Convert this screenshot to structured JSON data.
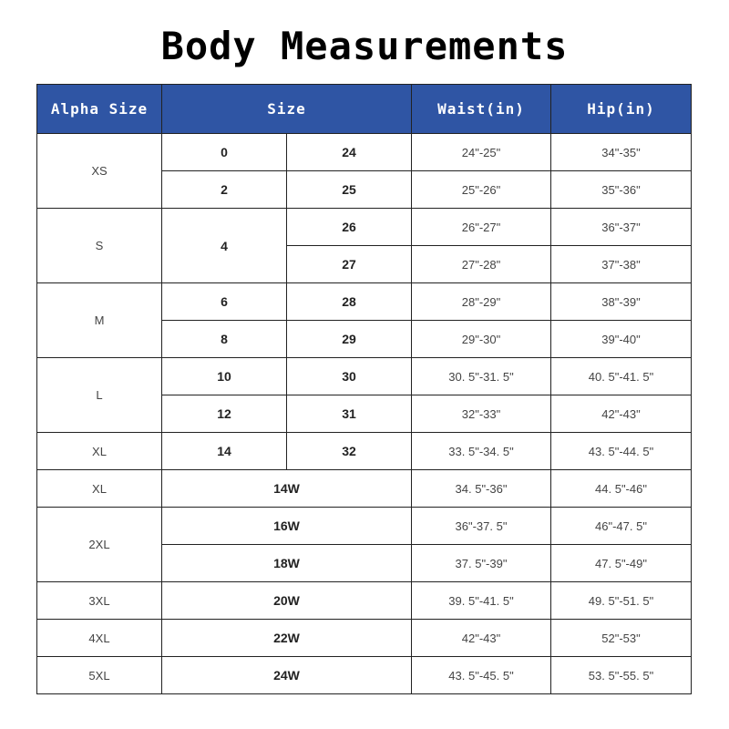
{
  "title": "Body Measurements",
  "headers": {
    "alpha": "Alpha Size",
    "size": "Size",
    "waist": "Waist(in)",
    "hip": "Hip(in)"
  },
  "colors": {
    "header_bg": "#2f55a4",
    "header_text": "#ffffff"
  },
  "groups": [
    {
      "alpha": "XS",
      "rows": [
        {
          "size": "0",
          "size2": "24",
          "waist": "24\"-25\"",
          "hip": "34\"-35\""
        },
        {
          "size": "2",
          "size2": "25",
          "waist": "25\"-26\"",
          "hip": "35\"-36\""
        }
      ]
    },
    {
      "alpha": "S",
      "size": "4",
      "rows": [
        {
          "size2": "26",
          "waist": "26\"-27\"",
          "hip": "36\"-37\""
        },
        {
          "size2": "27",
          "waist": "27\"-28\"",
          "hip": "37\"-38\""
        }
      ]
    },
    {
      "alpha": "M",
      "rows": [
        {
          "size": "6",
          "size2": "28",
          "waist": "28\"-29\"",
          "hip": "38\"-39\""
        },
        {
          "size": "8",
          "size2": "29",
          "waist": "29\"-30\"",
          "hip": "39\"-40\""
        }
      ]
    },
    {
      "alpha": "L",
      "rows": [
        {
          "size": "10",
          "size2": "30",
          "waist": "30. 5\"-31. 5\"",
          "hip": "40. 5\"-41. 5\""
        },
        {
          "size": "12",
          "size2": "31",
          "waist": "32\"-33\"",
          "hip": "42\"-43\""
        }
      ]
    },
    {
      "alpha": "XL",
      "rows": [
        {
          "size": "14",
          "size2": "32",
          "waist": "33. 5\"-34. 5\"",
          "hip": "43. 5\"-44. 5\""
        }
      ]
    },
    {
      "alpha": "XL",
      "rows": [
        {
          "wide": "14W",
          "waist": "34. 5\"-36\"",
          "hip": "44. 5\"-46\""
        }
      ]
    },
    {
      "alpha": "2XL",
      "rows": [
        {
          "wide": "16W",
          "waist": "36\"-37. 5\"",
          "hip": "46\"-47. 5\""
        },
        {
          "wide": "18W",
          "waist": "37. 5\"-39\"",
          "hip": "47. 5\"-49\""
        }
      ]
    },
    {
      "alpha": "3XL",
      "rows": [
        {
          "wide": "20W",
          "waist": "39. 5\"-41. 5\"",
          "hip": "49. 5\"-51. 5\""
        }
      ]
    },
    {
      "alpha": "4XL",
      "rows": [
        {
          "wide": "22W",
          "waist": "42\"-43\"",
          "hip": "52\"-53\""
        }
      ]
    },
    {
      "alpha": "5XL",
      "rows": [
        {
          "wide": "24W",
          "waist": "43. 5\"-45. 5\"",
          "hip": "53. 5\"-55. 5\""
        }
      ]
    }
  ]
}
